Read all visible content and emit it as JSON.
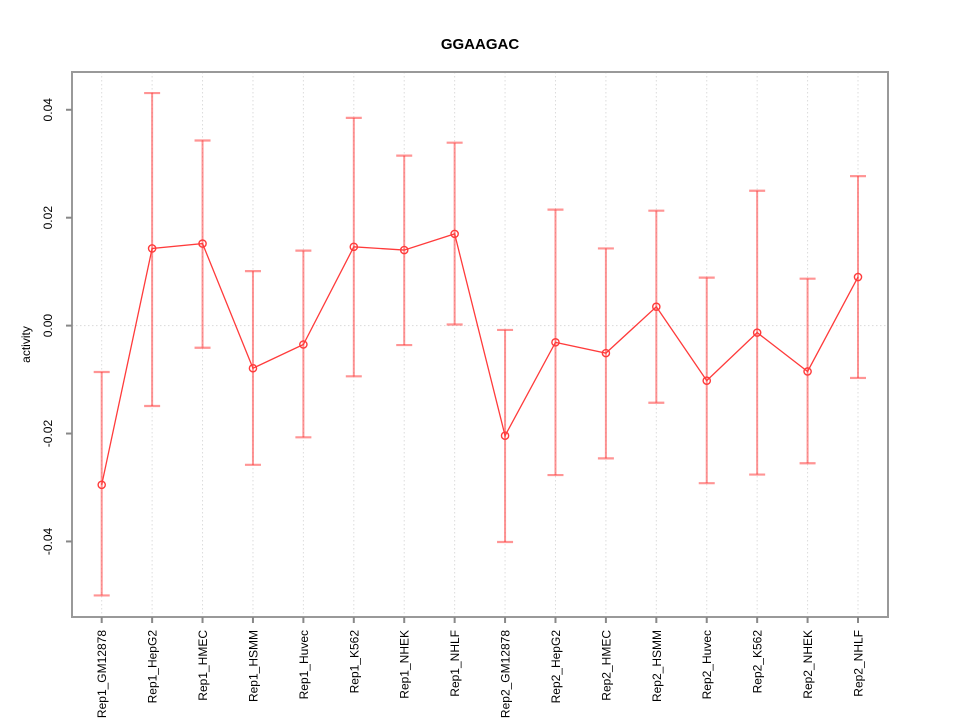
{
  "page": {
    "title": "GGAAGAC"
  },
  "chart_data": {
    "type": "line",
    "title": "GGAAGAC",
    "xlabel": "",
    "ylabel": "activity",
    "legend_position": "none",
    "grid": {
      "vertical_category_lines": true,
      "horizontal_zero_line": true
    },
    "categories": [
      "Rep1_GM12878",
      "Rep1_HepG2",
      "Rep1_HMEC",
      "Rep1_HSMM",
      "Rep1_Huvec",
      "Rep1_K562",
      "Rep1_NHEK",
      "Rep1_NHLF",
      "Rep2_GM12878",
      "Rep2_HepG2",
      "Rep2_HMEC",
      "Rep2_HSMM",
      "Rep2_Huvec",
      "Rep2_K562",
      "Rep2_NHEK",
      "Rep2_NHLF"
    ],
    "series": [
      {
        "name": "activity",
        "marker": "open-circle",
        "values": [
          -0.0295,
          0.0143,
          0.0152,
          -0.0079,
          -0.0035,
          0.0146,
          0.014,
          0.017,
          -0.0204,
          -0.0031,
          -0.0051,
          0.0035,
          -0.0102,
          -0.0013,
          -0.0085,
          0.009
        ],
        "error_lower": [
          -0.05,
          -0.0149,
          -0.0041,
          -0.0258,
          -0.0207,
          -0.0094,
          -0.0036,
          0.0002,
          -0.0401,
          -0.0277,
          -0.0246,
          -0.0143,
          -0.0292,
          -0.0276,
          -0.0255,
          -0.0097
        ],
        "error_upper": [
          -0.0086,
          0.0431,
          0.0343,
          0.0101,
          0.0139,
          0.0385,
          0.0315,
          0.0339,
          -0.0008,
          0.0215,
          0.0143,
          0.0213,
          0.0089,
          0.025,
          0.0087,
          0.0277
        ]
      }
    ],
    "ylim": [
      -0.054,
      0.047
    ],
    "yticks": [
      -0.04,
      -0.02,
      0,
      0.02,
      0.04
    ],
    "ytick_labels": [
      "-0.04",
      "-0.02",
      "0.00",
      "0.02",
      "0.04"
    ],
    "colors": {
      "line": "#ff3b3b",
      "marker": "#ff3b3b",
      "error_bar": "rgba(255,60,60,0.55)",
      "grid": "#dcdcdc",
      "zero_line": "#d9d9d9",
      "box": "#999999",
      "tick": "#888888",
      "text": "#000000",
      "background": "#ffffff"
    }
  }
}
